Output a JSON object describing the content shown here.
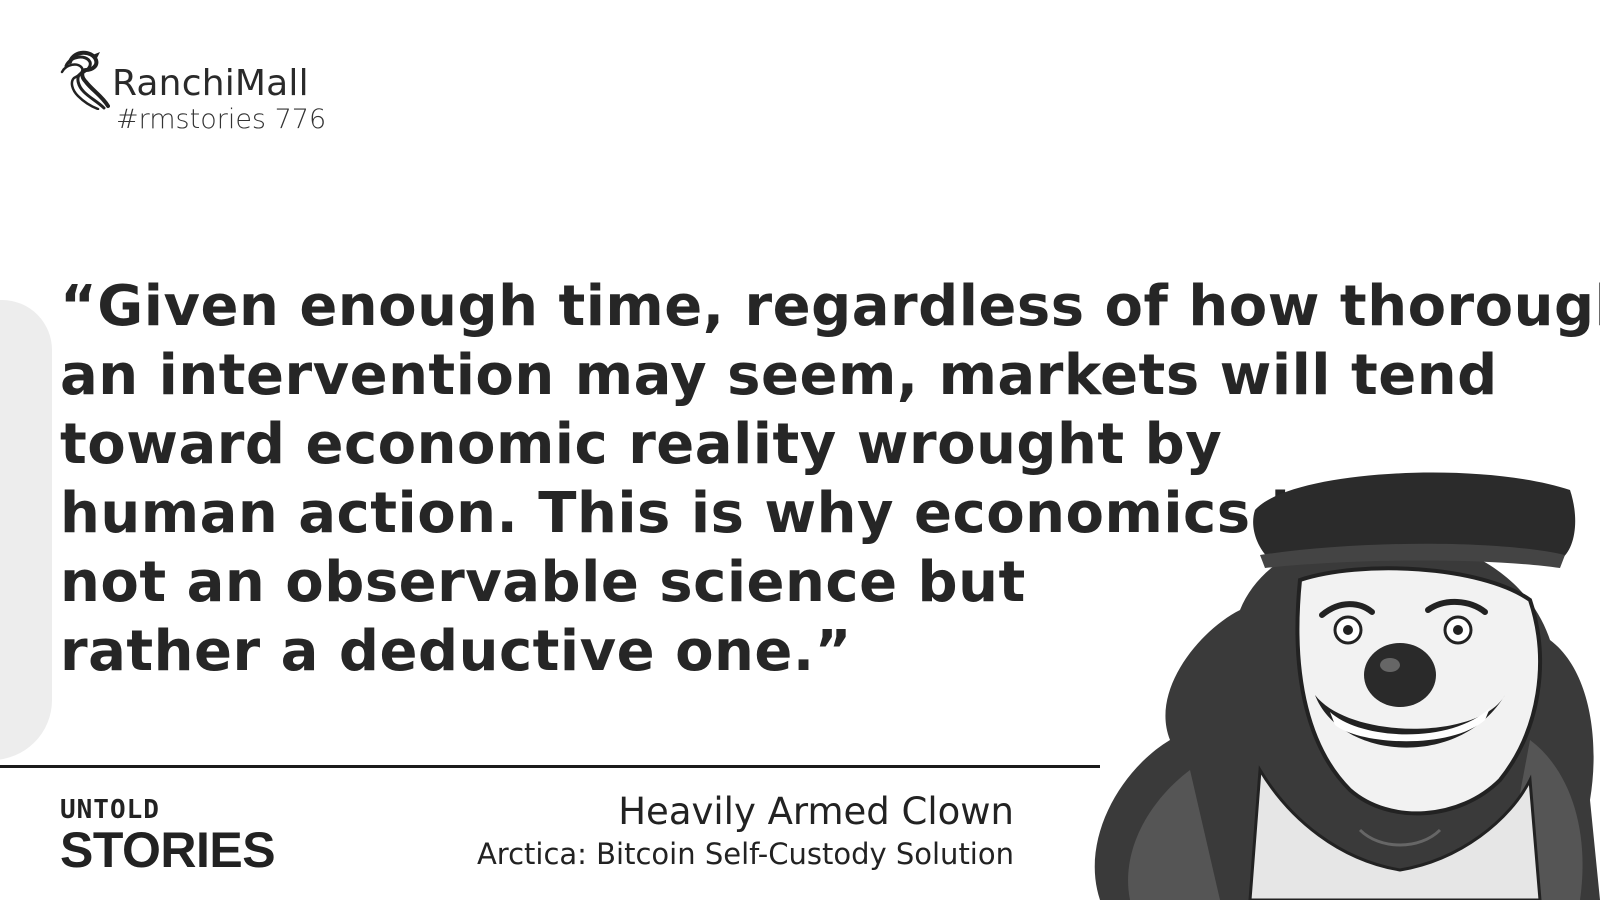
{
  "brand": {
    "name": "RanchiMall",
    "tag": "#rmstories 776",
    "logo_icon": "seahorse-logo-icon"
  },
  "quote": {
    "lines": [
      "“Given enough time, regardless of how thorough",
      "an intervention may seem, markets will tend",
      "toward economic reality wrought by",
      "human action. This is why economics is",
      "not an observable science but",
      "rather a deductive one.”"
    ]
  },
  "footer": {
    "series_top": "UNTOLD",
    "series_bottom": "STORIES",
    "author": "Heavily Armed Clown",
    "source": "Arctica: Bitcoin Self-Custody Solution"
  },
  "illustration": {
    "icon": "clown-illustration-icon"
  },
  "colors": {
    "text": "#262626",
    "background": "#ffffff",
    "divider": "#1b1b1b",
    "side_shape": "#ededed"
  }
}
